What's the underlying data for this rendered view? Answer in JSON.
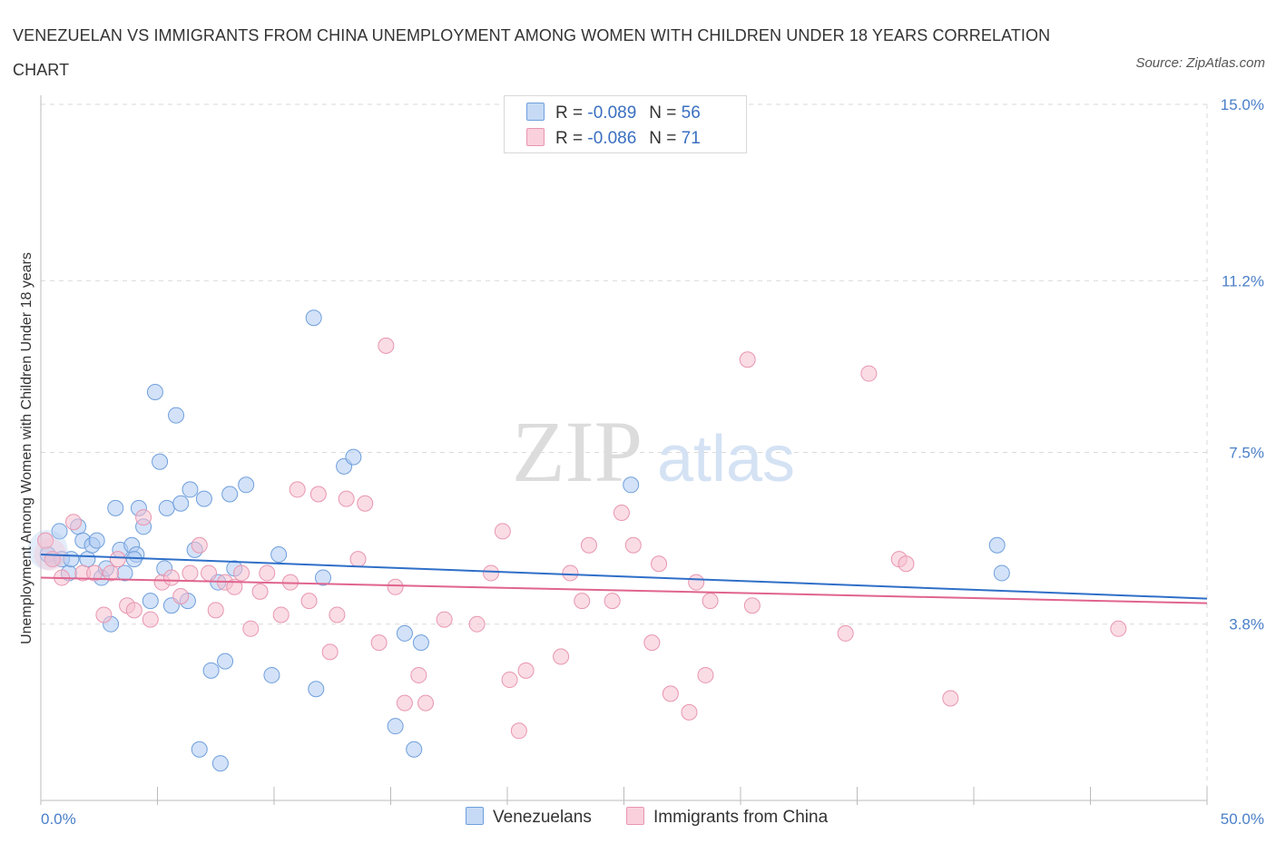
{
  "title": "VENEZUELAN VS IMMIGRANTS FROM CHINA UNEMPLOYMENT AMONG WOMEN WITH CHILDREN UNDER 18 YEARS CORRELATION CHART",
  "source": "Source: ZipAtlas.com",
  "watermark": {
    "zip": "ZIP",
    "atlas": "atlas"
  },
  "legend": {
    "rows": [
      {
        "r_label": "R =",
        "r_value": "-0.089",
        "n_label": "N =",
        "n_value": "56"
      },
      {
        "r_label": "R =",
        "r_value": "-0.086",
        "n_label": "N =",
        "n_value": "71"
      }
    ]
  },
  "bottom_legend": [
    "Venezuelans",
    "Immigrants from China"
  ],
  "colors": {
    "blue_fill": "#aecbf2",
    "blue_stroke": "#6f9fdc",
    "blue_line": "#2f6fc8",
    "pink_fill": "#f6bfcf",
    "pink_stroke": "#e896b0",
    "pink_line": "#e0648e",
    "tick_text": "#4a7fc8",
    "grid": "#d9d9d9"
  },
  "chart_data": {
    "type": "scatter",
    "title": "VENEZUELAN VS IMMIGRANTS FROM CHINA UNEMPLOYMENT AMONG WOMEN WITH CHILDREN UNDER 18 YEARS CORRELATION CHART",
    "ylabel": "Unemployment Among Women with Children Under 18 years",
    "xlabel": "",
    "xlim": [
      0,
      50
    ],
    "ylim": [
      0,
      15
    ],
    "x_tick_labels": [
      "0.0%",
      "50.0%"
    ],
    "y_ticks": [
      3.8,
      7.5,
      11.2,
      15.0
    ],
    "y_tick_labels": [
      "3.8%",
      "7.5%",
      "11.2%",
      "15.0%"
    ],
    "grid": true,
    "legend_position": "top-center",
    "series": [
      {
        "name": "Venezuelans",
        "r": -0.089,
        "n": 56,
        "trend": {
          "x": [
            0,
            50
          ],
          "y": [
            5.3,
            4.35
          ]
        },
        "points": [
          [
            0.3,
            5.3
          ],
          [
            0.5,
            5.2
          ],
          [
            0.8,
            5.8
          ],
          [
            0.9,
            5.2
          ],
          [
            1.2,
            4.9
          ],
          [
            1.3,
            5.2
          ],
          [
            1.6,
            5.9
          ],
          [
            1.8,
            5.6
          ],
          [
            2.0,
            5.2
          ],
          [
            2.2,
            5.5
          ],
          [
            2.4,
            5.6
          ],
          [
            2.6,
            4.8
          ],
          [
            2.8,
            5.0
          ],
          [
            3.0,
            3.8
          ],
          [
            3.2,
            6.3
          ],
          [
            3.4,
            5.4
          ],
          [
            3.6,
            4.9
          ],
          [
            3.9,
            5.5
          ],
          [
            4.1,
            5.3
          ],
          [
            4.2,
            6.3
          ],
          [
            4.4,
            5.9
          ],
          [
            4.7,
            4.3
          ],
          [
            4.9,
            8.8
          ],
          [
            5.1,
            7.3
          ],
          [
            5.3,
            5.0
          ],
          [
            5.4,
            6.3
          ],
          [
            5.6,
            4.2
          ],
          [
            5.8,
            8.3
          ],
          [
            6.0,
            6.4
          ],
          [
            6.3,
            4.3
          ],
          [
            6.4,
            6.7
          ],
          [
            6.6,
            5.4
          ],
          [
            7.0,
            6.5
          ],
          [
            7.3,
            2.8
          ],
          [
            7.6,
            4.7
          ],
          [
            7.9,
            3.0
          ],
          [
            8.1,
            6.6
          ],
          [
            8.3,
            5.0
          ],
          [
            8.8,
            6.8
          ],
          [
            9.9,
            2.7
          ],
          [
            10.2,
            5.3
          ],
          [
            11.7,
            10.4
          ],
          [
            11.8,
            2.4
          ],
          [
            12.1,
            4.8
          ],
          [
            13.0,
            7.2
          ],
          [
            13.4,
            7.4
          ],
          [
            15.2,
            1.6
          ],
          [
            15.6,
            3.6
          ],
          [
            16.0,
            1.1
          ],
          [
            16.3,
            3.4
          ],
          [
            25.3,
            6.8
          ],
          [
            41.0,
            5.5
          ],
          [
            41.2,
            4.9
          ],
          [
            6.8,
            1.1
          ],
          [
            7.7,
            0.8
          ],
          [
            4.0,
            5.2
          ]
        ]
      },
      {
        "name": "Immigrants from China",
        "r": -0.086,
        "n": 71,
        "trend": {
          "x": [
            0,
            50
          ],
          "y": [
            4.8,
            4.25
          ]
        },
        "points": [
          [
            0.2,
            5.6
          ],
          [
            0.5,
            5.2
          ],
          [
            0.9,
            4.8
          ],
          [
            1.4,
            6.0
          ],
          [
            1.8,
            4.9
          ],
          [
            2.3,
            4.9
          ],
          [
            2.7,
            4.0
          ],
          [
            3.0,
            4.9
          ],
          [
            3.3,
            5.2
          ],
          [
            3.7,
            4.2
          ],
          [
            4.0,
            4.1
          ],
          [
            4.4,
            6.1
          ],
          [
            4.7,
            3.9
          ],
          [
            5.2,
            4.7
          ],
          [
            5.6,
            4.8
          ],
          [
            6.0,
            4.4
          ],
          [
            6.4,
            4.9
          ],
          [
            6.8,
            5.5
          ],
          [
            7.2,
            4.9
          ],
          [
            7.5,
            4.1
          ],
          [
            7.9,
            4.7
          ],
          [
            8.3,
            4.6
          ],
          [
            8.6,
            4.9
          ],
          [
            9.0,
            3.7
          ],
          [
            9.4,
            4.5
          ],
          [
            9.7,
            4.9
          ],
          [
            10.3,
            4.0
          ],
          [
            10.7,
            4.7
          ],
          [
            11.0,
            6.7
          ],
          [
            11.5,
            4.3
          ],
          [
            11.9,
            6.6
          ],
          [
            12.4,
            3.2
          ],
          [
            12.7,
            4.0
          ],
          [
            13.1,
            6.5
          ],
          [
            13.6,
            5.2
          ],
          [
            13.9,
            6.4
          ],
          [
            14.5,
            3.4
          ],
          [
            14.8,
            9.8
          ],
          [
            15.2,
            4.6
          ],
          [
            15.6,
            2.1
          ],
          [
            16.2,
            2.7
          ],
          [
            16.5,
            2.1
          ],
          [
            17.3,
            3.9
          ],
          [
            18.7,
            3.8
          ],
          [
            19.3,
            4.9
          ],
          [
            19.8,
            5.8
          ],
          [
            20.1,
            2.6
          ],
          [
            20.5,
            1.5
          ],
          [
            20.8,
            2.8
          ],
          [
            22.3,
            3.1
          ],
          [
            22.7,
            4.9
          ],
          [
            23.2,
            4.3
          ],
          [
            23.5,
            5.5
          ],
          [
            24.5,
            4.3
          ],
          [
            24.9,
            6.2
          ],
          [
            25.4,
            5.5
          ],
          [
            26.2,
            3.4
          ],
          [
            26.5,
            5.1
          ],
          [
            27.0,
            2.3
          ],
          [
            27.8,
            1.9
          ],
          [
            28.1,
            4.7
          ],
          [
            28.5,
            2.7
          ],
          [
            28.7,
            4.3
          ],
          [
            30.3,
            9.5
          ],
          [
            30.5,
            4.2
          ],
          [
            34.5,
            3.6
          ],
          [
            35.5,
            9.2
          ],
          [
            36.8,
            5.2
          ],
          [
            37.1,
            5.1
          ],
          [
            39.0,
            2.2
          ],
          [
            46.2,
            3.7
          ]
        ]
      }
    ]
  }
}
